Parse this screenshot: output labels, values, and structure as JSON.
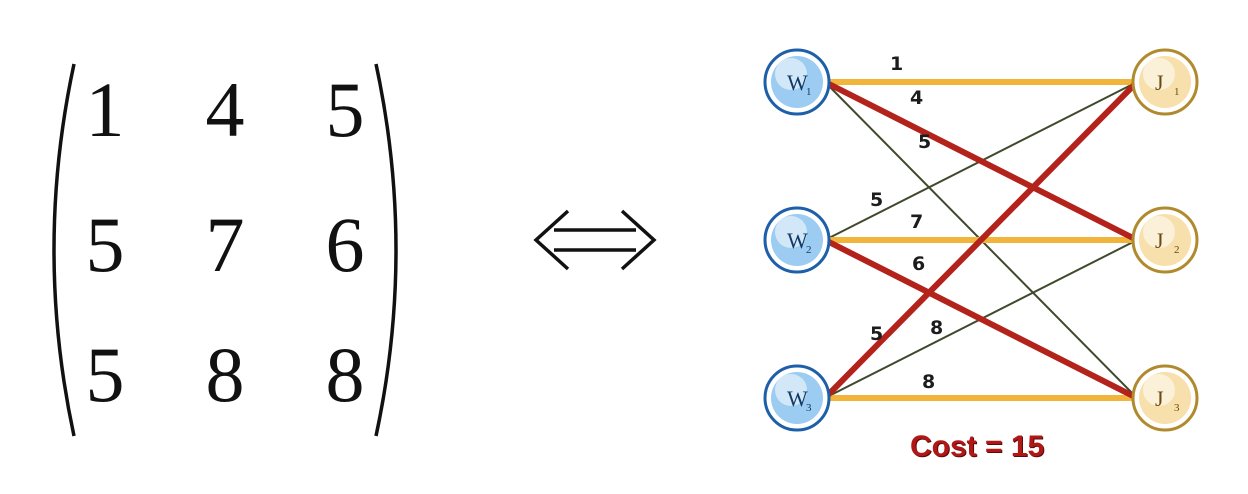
{
  "matrix": {
    "rows": [
      [
        "1",
        "4",
        "5"
      ],
      [
        "5",
        "7",
        "6"
      ],
      [
        "5",
        "8",
        "8"
      ]
    ]
  },
  "equivalence_symbol": "⇔",
  "graph": {
    "workers": [
      {
        "letter": "W",
        "index": "1"
      },
      {
        "letter": "W",
        "index": "2"
      },
      {
        "letter": "W",
        "index": "3"
      }
    ],
    "jobs": [
      {
        "letter": "J",
        "index": "1"
      },
      {
        "letter": "J",
        "index": "2"
      },
      {
        "letter": "J",
        "index": "3"
      }
    ],
    "edges": [
      {
        "from": 0,
        "to": 0,
        "label": "1",
        "style": "highlight"
      },
      {
        "from": 0,
        "to": 1,
        "label": "4",
        "style": "selected"
      },
      {
        "from": 0,
        "to": 2,
        "label": "5",
        "style": "thin"
      },
      {
        "from": 1,
        "to": 0,
        "label": "5",
        "style": "thin"
      },
      {
        "from": 1,
        "to": 1,
        "label": "7",
        "style": "highlight"
      },
      {
        "from": 1,
        "to": 2,
        "label": "6",
        "style": "selected"
      },
      {
        "from": 2,
        "to": 0,
        "label": "5",
        "style": "selected"
      },
      {
        "from": 2,
        "to": 1,
        "label": "8",
        "style": "thin"
      },
      {
        "from": 2,
        "to": 2,
        "label": "8",
        "style": "highlight"
      }
    ],
    "colors": {
      "selected": "#b3221b",
      "highlight": "#f2b53c",
      "thin": "#3f4a2c",
      "worker_fill": "#4aa3e6",
      "worker_stroke": "#1d5fa8",
      "job_fill": "#f0c766",
      "job_stroke": "#b08a2c"
    }
  },
  "cost_text": "Cost = 15"
}
